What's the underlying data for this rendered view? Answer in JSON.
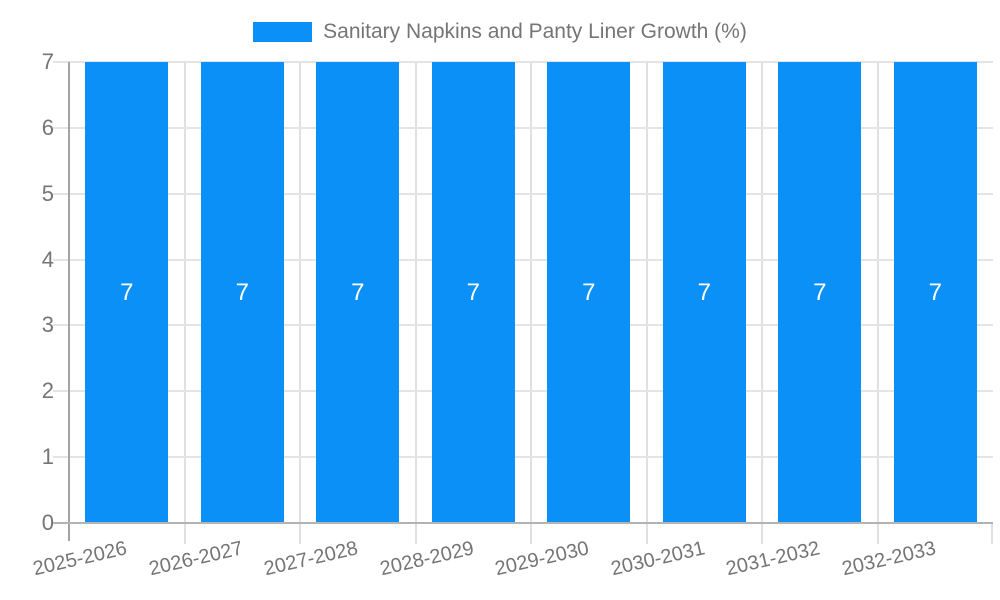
{
  "legend": {
    "items": [
      {
        "label": "Sanitary Napkins and Panty Liner Growth (%)",
        "color": "#0b90f8"
      }
    ]
  },
  "chart_data": {
    "type": "bar",
    "title": "Sanitary Napkins and Panty Liner Growth (%)",
    "categories": [
      "2025-2026",
      "2026-2027",
      "2027-2028",
      "2028-2029",
      "2029-2030",
      "2030-2031",
      "2031-2032",
      "2032-2033"
    ],
    "series": [
      {
        "name": "Sanitary Napkins and Panty Liner Growth (%)",
        "values": [
          7,
          7,
          7,
          7,
          7,
          7,
          7,
          7
        ]
      }
    ],
    "bar_labels": [
      "7",
      "7",
      "7",
      "7",
      "7",
      "7",
      "7",
      "7"
    ],
    "xlabel": "",
    "ylabel": "",
    "ylim": [
      0,
      7
    ],
    "yticks": [
      0,
      1,
      2,
      3,
      4,
      5,
      6,
      7
    ],
    "grid": true,
    "legend_position": "top-center",
    "x_label_rotation_deg": -13,
    "colors": {
      "bar": "#0b90f8",
      "bar_label": "#ffffff",
      "gridline": "#e4e4e4",
      "vertical_gridline": "#e0e0e0",
      "baseline": "#b3b3b3",
      "axis_line": "#a3a3a3",
      "axis_text": "#757575"
    }
  }
}
